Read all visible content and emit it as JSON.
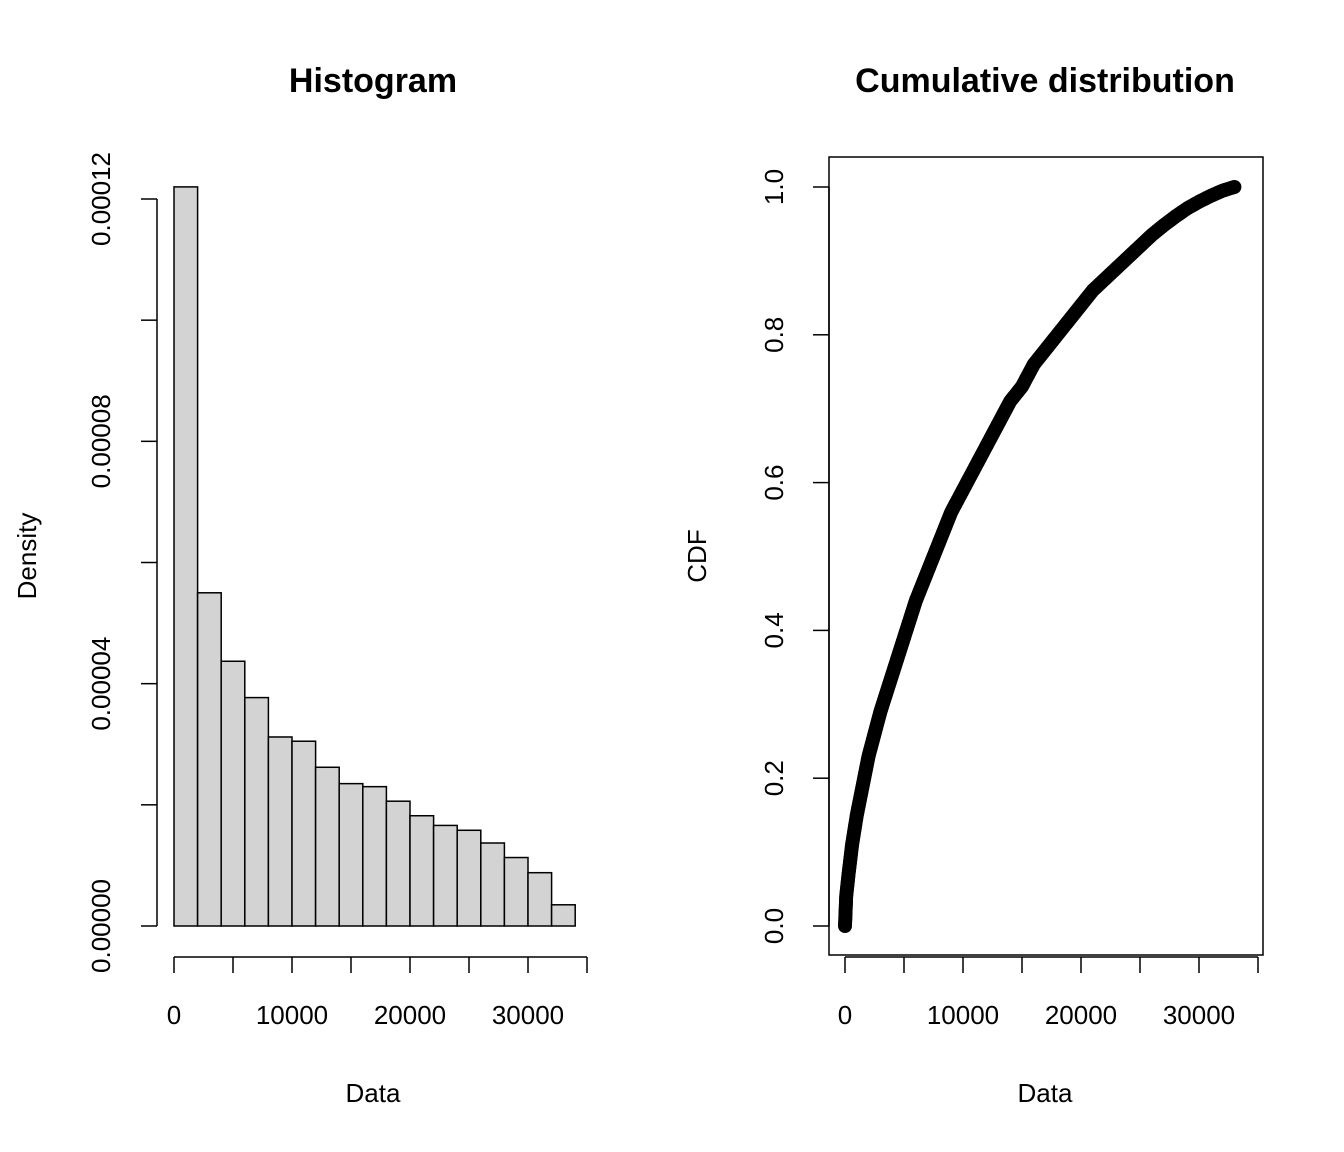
{
  "chart_data": [
    {
      "type": "bar",
      "title": "Histogram",
      "xlabel": "Data",
      "ylabel": "Density",
      "bin_edges": [
        0,
        2000,
        4000,
        6000,
        8000,
        10000,
        12000,
        14000,
        16000,
        18000,
        20000,
        22000,
        24000,
        26000,
        28000,
        30000,
        32000,
        34000
      ],
      "values": [
        0.000122,
        5.5e-05,
        4.37e-05,
        3.77e-05,
        3.12e-05,
        3.05e-05,
        2.62e-05,
        2.35e-05,
        2.3e-05,
        2.06e-05,
        1.82e-05,
        1.66e-05,
        1.58e-05,
        1.37e-05,
        1.13e-05,
        8.8e-06,
        3.5e-06
      ],
      "xlim": [
        0,
        35000
      ],
      "ylim": [
        0,
        0.00012
      ],
      "x_ticks": [
        0,
        10000,
        20000,
        30000
      ],
      "x_tick_labels": [
        "0",
        "10000",
        "20000",
        "30000"
      ],
      "y_ticks": [
        0,
        2e-05,
        4e-05,
        6e-05,
        8e-05,
        0.0001,
        0.00012
      ],
      "y_tick_labels": [
        "0.00000",
        "",
        "0.00004",
        "",
        "0.00008",
        "",
        "0.00012"
      ],
      "grid": false,
      "legend": "none"
    },
    {
      "type": "scatter",
      "title": "Cumulative distribution",
      "xlabel": "Data",
      "ylabel": "CDF",
      "x": [
        0,
        100,
        300,
        600,
        1000,
        1500,
        2000,
        3000,
        4000,
        5000,
        6000,
        7000,
        8000,
        9000,
        10000,
        11000,
        12000,
        13000,
        14000,
        15000,
        16000,
        17000,
        18000,
        19000,
        20000,
        21000,
        22000,
        23000,
        24000,
        25000,
        26000,
        27000,
        28000,
        29000,
        30000,
        31000,
        32000,
        33000
      ],
      "y": [
        0,
        0.04,
        0.07,
        0.11,
        0.15,
        0.19,
        0.23,
        0.29,
        0.34,
        0.39,
        0.44,
        0.48,
        0.52,
        0.56,
        0.59,
        0.62,
        0.65,
        0.68,
        0.71,
        0.73,
        0.76,
        0.78,
        0.8,
        0.82,
        0.84,
        0.86,
        0.875,
        0.89,
        0.905,
        0.92,
        0.935,
        0.948,
        0.96,
        0.971,
        0.98,
        0.988,
        0.995,
        1.0
      ],
      "xlim": [
        -1000,
        34500
      ],
      "ylim": [
        -0.04,
        1.04
      ],
      "x_ticks": [
        0,
        5000,
        10000,
        15000,
        20000,
        25000,
        30000,
        35000
      ],
      "x_tick_labels": [
        "0",
        "",
        "10000",
        "",
        "20000",
        "",
        "30000",
        ""
      ],
      "y_ticks": [
        0,
        0.2,
        0.4,
        0.6,
        0.8,
        1.0
      ],
      "y_tick_labels": [
        "0.0",
        "0.2",
        "0.4",
        "0.6",
        "0.8",
        "1.0"
      ],
      "grid": false,
      "legend": "none"
    }
  ]
}
